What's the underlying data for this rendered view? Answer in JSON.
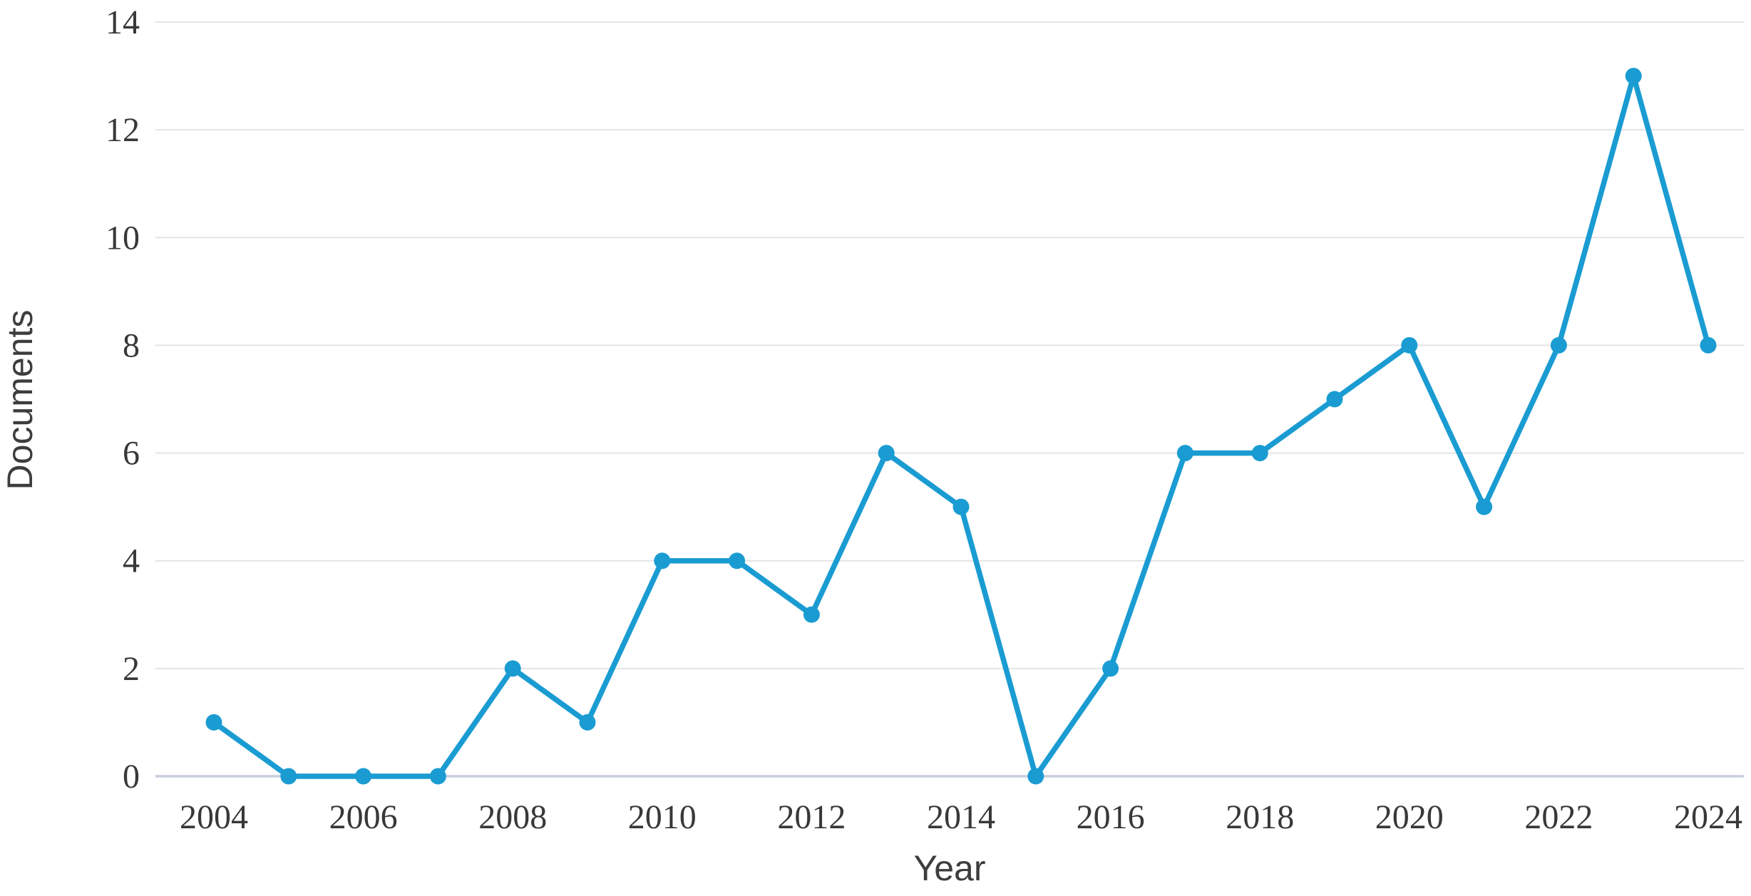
{
  "chart_data": {
    "type": "line",
    "title": "",
    "xlabel": "Year",
    "ylabel": "Documents",
    "x": [
      2004,
      2005,
      2006,
      2007,
      2008,
      2009,
      2010,
      2011,
      2012,
      2013,
      2014,
      2015,
      2016,
      2017,
      2018,
      2019,
      2020,
      2021,
      2022,
      2023,
      2024
    ],
    "series": [
      {
        "name": "Documents",
        "values": [
          1,
          0,
          0,
          0,
          2,
          1,
          4,
          4,
          3,
          6,
          5,
          0,
          2,
          6,
          6,
          7,
          8,
          5,
          8,
          13,
          8
        ]
      }
    ],
    "ylim": [
      0,
      14
    ],
    "yticks": [
      0,
      2,
      4,
      6,
      8,
      10,
      12,
      14
    ],
    "xticks": [
      2004,
      2006,
      2008,
      2010,
      2012,
      2014,
      2016,
      2018,
      2020,
      2022,
      2024
    ],
    "grid": "horizontal",
    "legend": "none",
    "marker": "circle",
    "colors": {
      "line": "#1a9cd2",
      "marker": "#1a9cd2",
      "grid_line": "#e4e4e4",
      "zero_line": "#c8cede",
      "text": "#383838",
      "axis_title_text": "#3d3d3d",
      "background": "#ffffff"
    }
  }
}
